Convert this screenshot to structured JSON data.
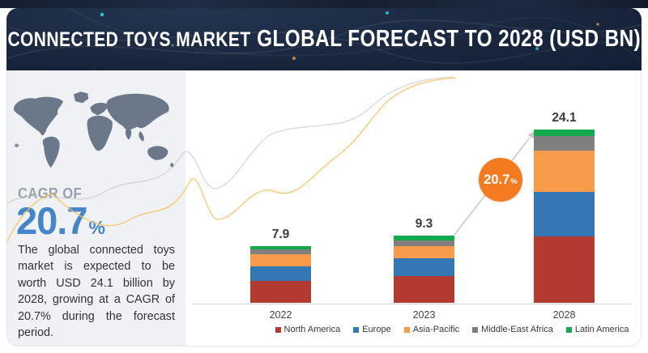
{
  "header": {
    "title_part1": "CONNECTED TOYS MARKET",
    "title_part2": "GLOBAL FORECAST TO 2028 (USD BN)"
  },
  "sidebar": {
    "cagr_label": "CAGR OF",
    "cagr_value": "20.7",
    "cagr_unit": "%",
    "description": "The global connected toys market is expected to be worth USD 24.1 billion by 2028, growing at a CAGR of 20.7% during the forecast period.",
    "map_color": "#6b7889"
  },
  "growth_badge": {
    "value": "20.7",
    "unit": "%",
    "color": "#f47b20"
  },
  "chart_data": {
    "type": "bar",
    "stacked": true,
    "title": "CONNECTED TOYS MARKET GLOBAL FORECAST TO 2028 (USD BN)",
    "xlabel": "",
    "ylabel": "USD BN",
    "categories": [
      "2022",
      "2023",
      "2028"
    ],
    "series": [
      {
        "name": "North America",
        "color": "#b23a30",
        "values": [
          3.0,
          3.7,
          9.2
        ]
      },
      {
        "name": "Europe",
        "color": "#3477b4",
        "values": [
          2.05,
          2.5,
          6.2
        ]
      },
      {
        "name": "Asia-Pacific",
        "color": "#f89b4a",
        "values": [
          1.7,
          1.7,
          5.7
        ]
      },
      {
        "name": "Middle-East Africa",
        "color": "#7f7f7f",
        "values": [
          0.7,
          0.8,
          2.0
        ]
      },
      {
        "name": "Latin America",
        "color": "#13a94c",
        "values": [
          0.45,
          0.6,
          1.0
        ]
      }
    ],
    "totals": [
      "7.9",
      "9.3",
      "24.1"
    ],
    "cagr_annotation": "20.7%",
    "legend_position": "bottom",
    "grid": false,
    "ylim": [
      0,
      26
    ]
  }
}
